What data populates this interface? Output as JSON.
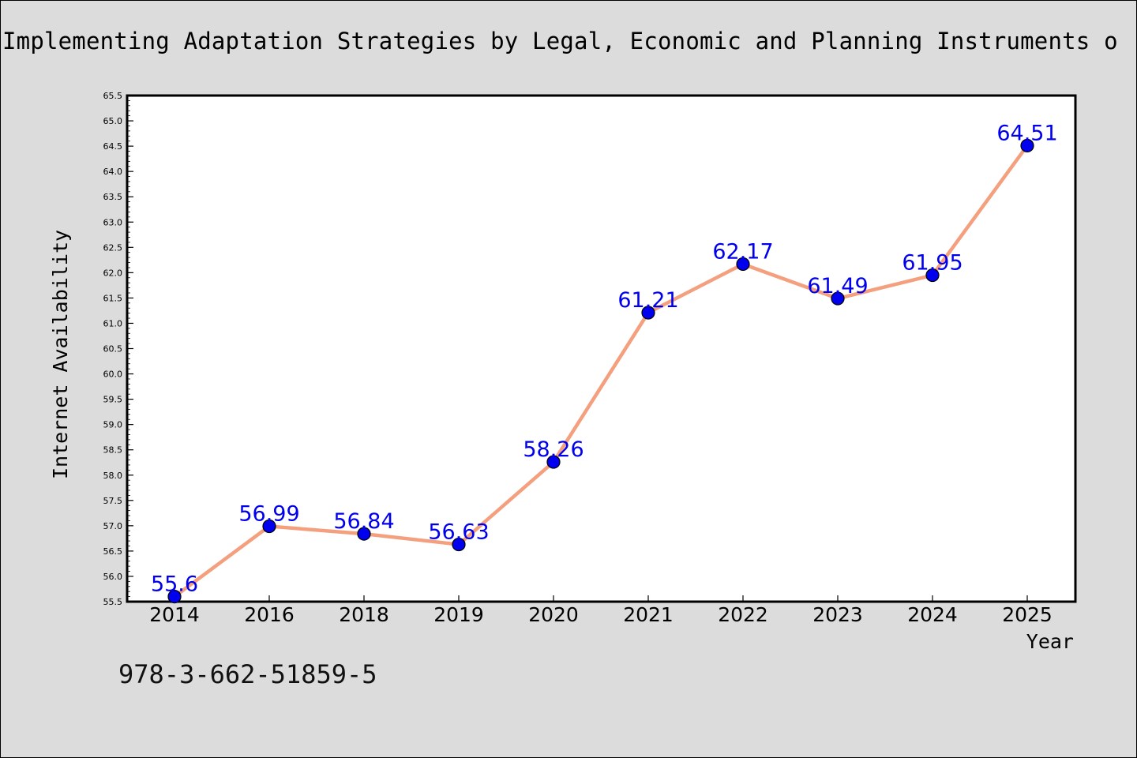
{
  "header": {
    "title": "Implementing Adaptation Strategies by Legal, Economic and Planning Instruments o"
  },
  "footer": {
    "isbn": "978-3-662-51859-5"
  },
  "colors": {
    "background": "#dcdcdc",
    "plot_background": "#ffffff",
    "line": "#f4a07e",
    "marker": "#0000ee",
    "data_label": "#0000ee"
  },
  "chart_data": {
    "type": "line",
    "title": "Implementing Adaptation Strategies by Legal, Economic and Planning Instruments o",
    "xlabel": "Year",
    "ylabel": "Internet Availability",
    "categories": [
      "2014",
      "2016",
      "2018",
      "2019",
      "2020",
      "2021",
      "2022",
      "2023",
      "2024",
      "2025"
    ],
    "series": [
      {
        "values": [
          55.6,
          56.99,
          56.84,
          56.63,
          58.26,
          61.21,
          62.17,
          61.49,
          61.95,
          64.51
        ],
        "labels": [
          "55.6",
          "56.99",
          "56.84",
          "56.63",
          "58.26",
          "61.21",
          "62.17",
          "61.49",
          "61.95",
          "64.51"
        ]
      }
    ],
    "ylim": [
      55.5,
      65.5
    ],
    "ytick_step": 0.5,
    "ytick_labels": [
      "55.5",
      "56.0",
      "56.5",
      "57.0",
      "57.5",
      "58.0",
      "58.5",
      "59.0",
      "59.5",
      "60.0",
      "60.5",
      "61.0",
      "61.5",
      "62.0",
      "62.5",
      "63.0",
      "63.5",
      "64.0",
      "64.5",
      "65.0",
      "65.5"
    ],
    "grid": false,
    "legend": "none"
  }
}
